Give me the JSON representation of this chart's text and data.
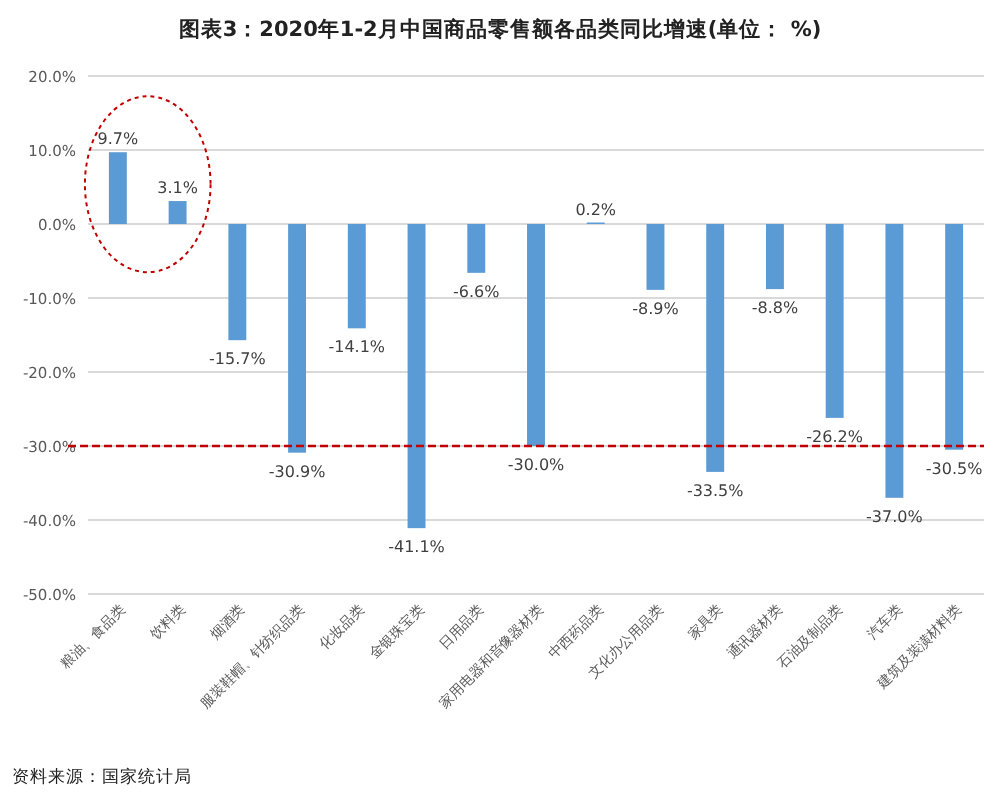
{
  "chart_data": {
    "type": "bar",
    "title": "图表3：2020年1-2月中国商品零售额各品类同比增速(单位： %)",
    "categories": [
      "粮油、食品类",
      "饮料类",
      "烟酒类",
      "服装鞋帽、针纺织品类",
      "化妆品类",
      "金银珠宝类",
      "日用品类",
      "家用电器和音像器材类",
      "中西药品类",
      "文化办公用品类",
      "家具类",
      "通讯器材类",
      "石油及制品类",
      "汽车类",
      "建筑及装潢材料类"
    ],
    "values": [
      9.7,
      3.1,
      -15.7,
      -30.9,
      -14.1,
      -41.1,
      -6.6,
      -30.0,
      0.2,
      -8.9,
      -33.5,
      -8.8,
      -26.2,
      -37.0,
      -30.5
    ],
    "value_labels": [
      "9.7%",
      "3.1%",
      "-15.7%",
      "-30.9%",
      "-14.1%",
      "-41.1%",
      "-6.6%",
      "-30.0%",
      "0.2%",
      "-8.9%",
      "-33.5%",
      "-8.8%",
      "-26.2%",
      "-37.0%",
      "-30.5%"
    ],
    "color": "#5b9bd5",
    "ylim": [
      -50,
      20
    ],
    "yticks": [
      {
        "value": -50,
        "label": "-50.0%"
      },
      {
        "value": -40,
        "label": "-40.0%"
      },
      {
        "value": -30,
        "label": "-30.0%"
      },
      {
        "value": -20,
        "label": "-20.0%"
      },
      {
        "value": -10,
        "label": "-10.0%"
      },
      {
        "value": 0,
        "label": "0.0%"
      },
      {
        "value": 10,
        "label": "10.0%"
      },
      {
        "value": 20,
        "label": "20.0%"
      }
    ],
    "grid": "y",
    "ref_lines": [
      {
        "axis": "y",
        "value": -30,
        "color": "#c00000",
        "line_style": "dashed"
      }
    ],
    "annotations": [
      "资料来源：国家统计局"
    ]
  }
}
